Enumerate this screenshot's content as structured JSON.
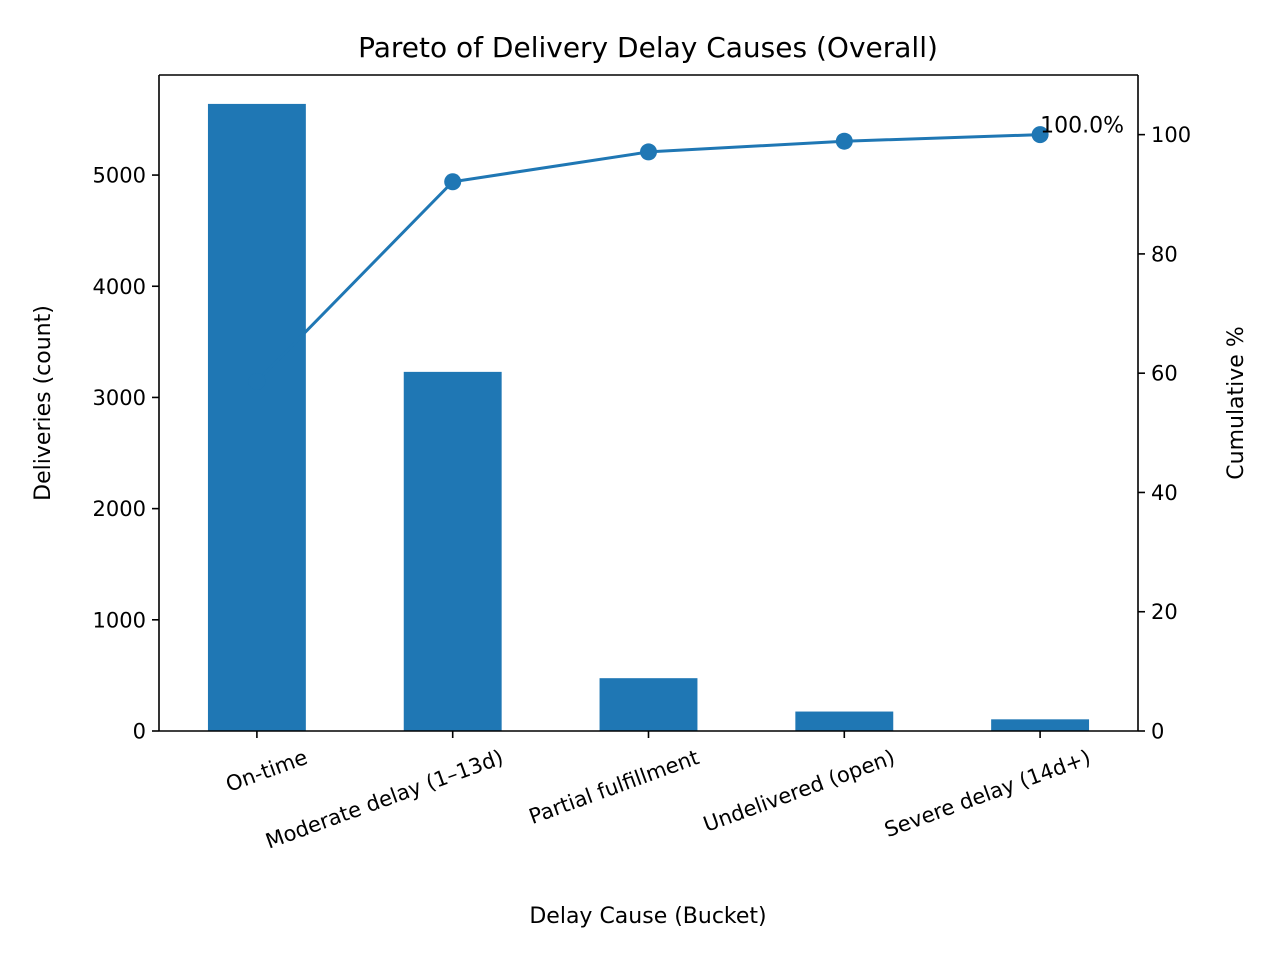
{
  "chart_data": {
    "type": "bar",
    "title": "Pareto of Delivery Delay Causes (Overall)",
    "xlabel": "Delay Cause (Bucket)",
    "ylabel": "Deliveries (count)",
    "y2label": "Cumulative %",
    "categories": [
      "On-time",
      "Moderate delay (1–13d)",
      "Partial fulfillment",
      "Undelivered (open)",
      "Severe delay (14d+)"
    ],
    "series": [
      {
        "values": [
          5640,
          3230,
          475,
          175,
          105
        ],
        "color": "#1f77b4"
      }
    ],
    "cumulative": {
      "values": [
        58.6,
        92.1,
        97.1,
        98.9,
        100.0
      ],
      "color": "#1f77b4",
      "marker": "circle"
    },
    "ylim": [
      0,
      5900
    ],
    "y2lim": [
      0,
      110
    ],
    "yticks": [
      "0",
      "1000",
      "2000",
      "3000",
      "4000",
      "5000"
    ],
    "y2ticks": [
      "0",
      "20",
      "40",
      "60",
      "80",
      "100"
    ],
    "annotations": [
      {
        "text": "100.0%",
        "series": "cumulative",
        "index": 4
      }
    ],
    "grid": false,
    "legend": "none"
  }
}
